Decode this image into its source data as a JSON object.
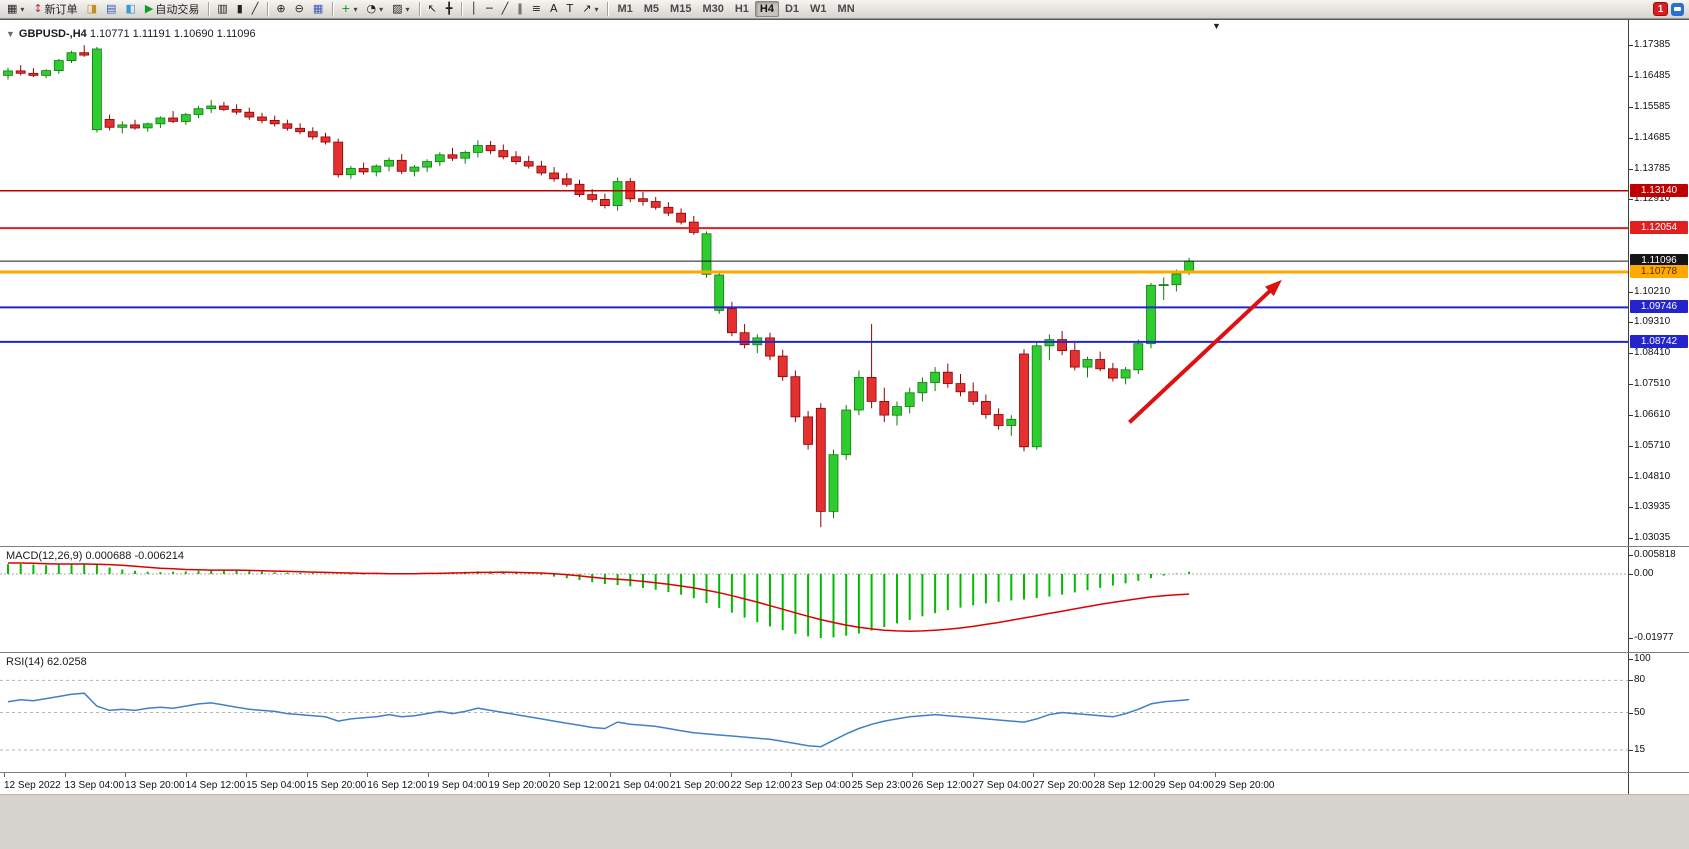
{
  "toolbar": {
    "notification": {
      "count": "1"
    },
    "groups": [
      {
        "items": [
          {
            "name": "new-chart-button",
            "glyph": "▦",
            "dropdown": true
          },
          {
            "name": "new-order-button",
            "glyph": "↕",
            "glyph_color": "#b03030",
            "label": "新订单"
          },
          {
            "name": "market-watch-button",
            "glyph": "◨",
            "glyph_color": "#c09020"
          },
          {
            "name": "data-window-button",
            "glyph": "▤",
            "glyph_color": "#3858b8"
          },
          {
            "name": "navigator-button",
            "glyph": "◧",
            "glyph_color": "#3898d8"
          },
          {
            "name": "autotrading-button",
            "glyph": "▶",
            "glyph_color": "#10a020",
            "label": "自动交易"
          }
        ]
      },
      {
        "items": [
          {
            "name": "bar-chart-button",
            "glyph": "▥"
          },
          {
            "name": "candlestick-chart-button",
            "glyph": "▮"
          },
          {
            "name": "line-chart-button",
            "glyph": "╱"
          }
        ]
      },
      {
        "items": [
          {
            "name": "zoom-in-button",
            "glyph": "⊕"
          },
          {
            "name": "zoom-out-button",
            "glyph": "⊖"
          },
          {
            "name": "tile-windows-button",
            "glyph": "▦",
            "glyph_color": "#3858b8"
          }
        ]
      },
      {
        "items": [
          {
            "name": "indicators-button",
            "glyph": "+",
            "glyph_color": "#0a9a0a",
            "dropdown": true
          },
          {
            "name": "periods-button",
            "glyph": "◔",
            "dropdown": true
          },
          {
            "name": "templates-button",
            "glyph": "▨",
            "dropdown": true
          }
        ]
      },
      {
        "items": [
          {
            "name": "cursor-button",
            "glyph": "↖"
          },
          {
            "name": "crosshair-button",
            "glyph": "╋"
          }
        ]
      },
      {
        "items": [
          {
            "name": "vertical-line-button",
            "glyph": "│"
          },
          {
            "name": "horizontal-line-button",
            "glyph": "─"
          },
          {
            "name": "trendline-button",
            "glyph": "╱"
          },
          {
            "name": "equidistant-channel-button",
            "glyph": "∥"
          },
          {
            "name": "fibonacci-button",
            "glyph": "≡"
          },
          {
            "name": "text-button",
            "glyph": "A"
          },
          {
            "name": "text-label-button",
            "glyph": "T"
          },
          {
            "name": "arrows-button",
            "glyph": "↗",
            "dropdown": true
          }
        ]
      },
      {
        "items": [
          {
            "name": "timeframe-m1-button",
            "label": "M1",
            "tf": true
          },
          {
            "name": "timeframe-m5-button",
            "label": "M5",
            "tf": true
          },
          {
            "name": "timeframe-m15-button",
            "label": "M15",
            "tf": true
          },
          {
            "name": "timeframe-m30-button",
            "label": "M30",
            "tf": true
          },
          {
            "name": "timeframe-h1-button",
            "label": "H1",
            "tf": true
          },
          {
            "name": "timeframe-h4-button",
            "label": "H4",
            "tf": true,
            "active": true
          },
          {
            "name": "timeframe-d1-button",
            "label": "D1",
            "tf": true
          },
          {
            "name": "timeframe-w1-button",
            "label": "W1",
            "tf": true
          },
          {
            "name": "timeframe-mn-button",
            "label": "MN",
            "tf": true
          }
        ]
      }
    ]
  },
  "icons": {
    "collapse_arrow": "▼",
    "shift_marker": "▼"
  },
  "chart": {
    "symbol_header": "GBPUSD-,H4",
    "ohlc_header": "1.10771 1.11191 1.10690 1.11096"
  },
  "chart_data": {
    "type": "candlestick",
    "title": "GBPUSD- H4",
    "colors": {
      "bull": "#2ecc2e",
      "bull_border": "#0f7a0f",
      "bear": "#e33030",
      "bear_border": "#8f0000",
      "current_line": "#1a1a1a",
      "macd_histogram": "#00bb00",
      "macd_signal": "#dd0000",
      "rsi_line": "#4080c8"
    },
    "price_axis": {
      "min": 1.03035,
      "max": 1.17385,
      "labels": [
        "1.17385",
        "1.16485",
        "1.15585",
        "1.14685",
        "1.13785",
        "1.12910",
        "1.10210",
        "1.09310",
        "1.08410",
        "1.07510",
        "1.06610",
        "1.05710",
        "1.04810",
        "1.03935",
        "1.03035"
      ]
    },
    "time_labels": [
      "12 Sep 2022",
      "13 Sep 04:00",
      "13 Sep 20:00",
      "14 Sep 12:00",
      "15 Sep 04:00",
      "15 Sep 20:00",
      "16 Sep 12:00",
      "19 Sep 04:00",
      "19 Sep 20:00",
      "20 Sep 12:00",
      "21 Sep 04:00",
      "21 Sep 20:00",
      "22 Sep 12:00",
      "23 Sep 04:00",
      "25 Sep 23:00",
      "26 Sep 12:00",
      "27 Sep 04:00",
      "27 Sep 20:00",
      "28 Sep 12:00",
      "29 Sep 04:00",
      "29 Sep 20:00"
    ],
    "hlines": [
      {
        "price": 1.1314,
        "color": "#c00000",
        "width": 1.5
      },
      {
        "price": 1.12054,
        "color": "#e02020",
        "width": 2
      },
      {
        "price": 1.10778,
        "color": "#ffa800",
        "width": 3
      },
      {
        "price": 1.09746,
        "color": "#2424cc",
        "width": 2
      },
      {
        "price": 1.08742,
        "color": "#2424cc",
        "width": 2
      }
    ],
    "current_price": {
      "value": 1.11096,
      "label": "1.11096"
    },
    "badges": [
      {
        "label": "1.13140",
        "price": 1.1314,
        "bg": "#c00000",
        "fg": "#ffffff"
      },
      {
        "label": "1.12054",
        "price": 1.12054,
        "bg": "#e02020",
        "fg": "#ffffff"
      },
      {
        "label": "1.11096",
        "price": 1.11096,
        "bg": "#141414",
        "fg": "#ffffff"
      },
      {
        "label": "1.10778",
        "price": 1.10778,
        "bg": "#ffa800",
        "fg": "#503000"
      },
      {
        "label": "1.09746",
        "price": 1.09746,
        "bg": "#2424cc",
        "fg": "#ffffff"
      },
      {
        "label": "1.08742",
        "price": 1.08742,
        "bg": "#2424cc",
        "fg": "#ffffff"
      }
    ],
    "arrow": {
      "from": [
        88.3,
        1.064
      ],
      "to": [
        100.3,
        1.1055
      ],
      "color": "#dd1111"
    },
    "candles": [
      [
        1.165,
        1.1672,
        1.1638,
        1.1663
      ],
      [
        1.1663,
        1.168,
        1.165,
        1.1656
      ],
      [
        1.1656,
        1.1671,
        1.1645,
        1.165
      ],
      [
        1.165,
        1.1668,
        1.1642,
        1.1664
      ],
      [
        1.1664,
        1.1698,
        1.1655,
        1.1693
      ],
      [
        1.1693,
        1.1722,
        1.1686,
        1.1716
      ],
      [
        1.1716,
        1.1738,
        1.1704,
        1.1709
      ],
      [
        1.1492,
        1.1733,
        1.1484,
        1.1727
      ],
      [
        1.1522,
        1.1536,
        1.149,
        1.1499
      ],
      [
        1.1499,
        1.1516,
        1.1481,
        1.1506
      ],
      [
        1.1506,
        1.1521,
        1.1492,
        1.1497
      ],
      [
        1.1497,
        1.1513,
        1.1486,
        1.1509
      ],
      [
        1.1509,
        1.1531,
        1.1497,
        1.1526
      ],
      [
        1.1526,
        1.1546,
        1.1511,
        1.1516
      ],
      [
        1.1516,
        1.1541,
        1.1506,
        1.1536
      ],
      [
        1.1536,
        1.1561,
        1.1526,
        1.1553
      ],
      [
        1.1553,
        1.1578,
        1.1541,
        1.1561
      ],
      [
        1.1561,
        1.1573,
        1.1546,
        1.1551
      ],
      [
        1.1551,
        1.1566,
        1.1536,
        1.1543
      ],
      [
        1.1543,
        1.1556,
        1.1521,
        1.1529
      ],
      [
        1.1529,
        1.1541,
        1.1511,
        1.1519
      ],
      [
        1.1519,
        1.1533,
        1.1501,
        1.1509
      ],
      [
        1.1509,
        1.1521,
        1.1489,
        1.1496
      ],
      [
        1.1496,
        1.1511,
        1.1479,
        1.1486
      ],
      [
        1.1486,
        1.1499,
        1.1463,
        1.1471
      ],
      [
        1.1471,
        1.1483,
        1.1449,
        1.1456
      ],
      [
        1.1456,
        1.1466,
        1.1353,
        1.1361
      ],
      [
        1.1361,
        1.1386,
        1.1349,
        1.1379
      ],
      [
        1.1379,
        1.1396,
        1.1361,
        1.1369
      ],
      [
        1.1369,
        1.1391,
        1.1356,
        1.1386
      ],
      [
        1.1386,
        1.1411,
        1.1371,
        1.1403
      ],
      [
        1.1403,
        1.1421,
        1.1363,
        1.1371
      ],
      [
        1.1371,
        1.1389,
        1.1356,
        1.1383
      ],
      [
        1.1383,
        1.1406,
        1.1369,
        1.1399
      ],
      [
        1.1399,
        1.1426,
        1.1386,
        1.1419
      ],
      [
        1.1419,
        1.1439,
        1.1401,
        1.1409
      ],
      [
        1.1409,
        1.1431,
        1.1393,
        1.1426
      ],
      [
        1.1426,
        1.1461,
        1.1411,
        1.1446
      ],
      [
        1.1446,
        1.1459,
        1.1421,
        1.1431
      ],
      [
        1.1431,
        1.1449,
        1.1406,
        1.1413
      ],
      [
        1.1413,
        1.1429,
        1.1391,
        1.1399
      ],
      [
        1.1399,
        1.1416,
        1.1379,
        1.1386
      ],
      [
        1.1386,
        1.1401,
        1.1359,
        1.1366
      ],
      [
        1.1366,
        1.1383,
        1.1341,
        1.1349
      ],
      [
        1.1349,
        1.1366,
        1.1326,
        1.1333
      ],
      [
        1.1333,
        1.1346,
        1.1296,
        1.1303
      ],
      [
        1.1303,
        1.1319,
        1.1281,
        1.1289
      ],
      [
        1.1289,
        1.1306,
        1.1263,
        1.1271
      ],
      [
        1.1271,
        1.1353,
        1.1256,
        1.1341
      ],
      [
        1.1341,
        1.1351,
        1.1281,
        1.1291
      ],
      [
        1.1291,
        1.1311,
        1.1271,
        1.1283
      ],
      [
        1.1283,
        1.1296,
        1.1259,
        1.1266
      ],
      [
        1.1266,
        1.1281,
        1.1241,
        1.1249
      ],
      [
        1.1249,
        1.1263,
        1.1216,
        1.1223
      ],
      [
        1.1223,
        1.1241,
        1.1186,
        1.1193
      ],
      [
        1.1071,
        1.1196,
        1.1061,
        1.1189
      ],
      [
        1.0966,
        1.1076,
        1.0956,
        1.1069
      ],
      [
        1.0971,
        1.0991,
        1.0891,
        1.0901
      ],
      [
        1.0901,
        1.0926,
        1.0856,
        1.0866
      ],
      [
        1.0866,
        1.0896,
        1.0841,
        1.0886
      ],
      [
        1.0886,
        1.0901,
        1.0821,
        1.0833
      ],
      [
        1.0833,
        1.0851,
        1.0761,
        1.0773
      ],
      [
        1.0773,
        1.0791,
        1.0641,
        1.0656
      ],
      [
        1.0656,
        1.0673,
        1.0561,
        1.0576
      ],
      [
        1.0681,
        1.0696,
        1.0335,
        1.0381
      ],
      [
        1.0381,
        1.0561,
        1.0361,
        1.0546
      ],
      [
        1.0546,
        1.0691,
        1.0531,
        1.0676
      ],
      [
        1.0676,
        1.0791,
        1.0661,
        1.0771
      ],
      [
        1.0771,
        1.0926,
        1.0681,
        1.0701
      ],
      [
        1.0701,
        1.0741,
        1.0641,
        1.0661
      ],
      [
        1.0661,
        1.0701,
        1.0631,
        1.0686
      ],
      [
        1.0686,
        1.0741,
        1.0666,
        1.0726
      ],
      [
        1.0726,
        1.0771,
        1.0701,
        1.0756
      ],
      [
        1.0756,
        1.0801,
        1.0731,
        1.0786
      ],
      [
        1.0786,
        1.0811,
        1.0741,
        1.0753
      ],
      [
        1.0753,
        1.0781,
        1.0716,
        1.0729
      ],
      [
        1.0729,
        1.0756,
        1.0691,
        1.0701
      ],
      [
        1.0701,
        1.0721,
        1.0651,
        1.0663
      ],
      [
        1.0663,
        1.0681,
        1.0619,
        1.0631
      ],
      [
        1.0631,
        1.0661,
        1.0601,
        1.0649
      ],
      [
        1.0839,
        1.0853,
        1.0556,
        1.0569
      ],
      [
        1.0569,
        1.0876,
        1.0561,
        1.0863
      ],
      [
        1.0863,
        1.0896,
        1.0821,
        1.0881
      ],
      [
        1.0881,
        1.0906,
        1.0836,
        1.0849
      ],
      [
        1.0849,
        1.0871,
        1.0791,
        1.0801
      ],
      [
        1.0801,
        1.0831,
        1.0771,
        1.0823
      ],
      [
        1.0823,
        1.0846,
        1.0789,
        1.0796
      ],
      [
        1.0796,
        1.0813,
        1.0759,
        1.0769
      ],
      [
        1.0769,
        1.0801,
        1.0751,
        1.0793
      ],
      [
        1.0793,
        1.0881,
        1.0781,
        1.0869
      ],
      [
        1.0869,
        1.1046,
        1.0856,
        1.1039
      ],
      [
        1.1039,
        1.1062,
        1.0996,
        1.1041
      ],
      [
        1.1041,
        1.1085,
        1.1021,
        1.1072
      ],
      [
        1.10771,
        1.11191,
        1.1069,
        1.11096
      ]
    ],
    "macd": {
      "name": "MACD(12,26,9)",
      "main": "0.000688",
      "signal": "-0.006214",
      "scale": [
        {
          "label": "0.005818",
          "value": 0.005818
        },
        {
          "label": "0.00",
          "value": 0
        },
        {
          "label": "-0.01977",
          "value": -0.01977
        }
      ],
      "histogram": [
        0.003,
        0.0031,
        0.0029,
        0.0027,
        0.0029,
        0.0032,
        0.0033,
        0.0028,
        0.002,
        0.0014,
        0.001,
        0.0007,
        0.0006,
        0.0007,
        0.0008,
        0.001,
        0.0012,
        0.0012,
        0.0011,
        0.0009,
        0.0007,
        0.0005,
        0.0004,
        0.0003,
        0.0003,
        0.0002,
        0.0,
        -0.0002,
        -0.0002,
        -0.0001,
        0.0,
        0.0001,
        0.0002,
        0.0003,
        0.0005,
        0.0006,
        0.0007,
        0.0008,
        0.0008,
        0.0006,
        0.0004,
        0.0001,
        -0.0003,
        -0.0008,
        -0.0013,
        -0.0019,
        -0.0025,
        -0.0031,
        -0.0034,
        -0.0038,
        -0.0043,
        -0.0049,
        -0.0056,
        -0.0064,
        -0.0075,
        -0.009,
        -0.0105,
        -0.012,
        -0.0135,
        -0.0149,
        -0.0162,
        -0.0174,
        -0.0185,
        -0.0193,
        -0.0198,
        -0.0196,
        -0.0191,
        -0.0184,
        -0.0175,
        -0.0164,
        -0.0153,
        -0.0142,
        -0.0131,
        -0.0121,
        -0.0112,
        -0.0104,
        -0.0097,
        -0.0091,
        -0.0086,
        -0.0082,
        -0.0079,
        -0.0075,
        -0.007,
        -0.0064,
        -0.0057,
        -0.005,
        -0.0043,
        -0.0036,
        -0.0029,
        -0.0021,
        -0.0013,
        -0.0005,
        0.0002,
        0.000688
      ],
      "signal_line": [
        0.0034,
        0.0034,
        0.0033,
        0.0032,
        0.0031,
        0.0031,
        0.0031,
        0.003,
        0.0029,
        0.0027,
        0.0024,
        0.0021,
        0.0018,
        0.0016,
        0.0014,
        0.0013,
        0.0012,
        0.0012,
        0.0012,
        0.0011,
        0.001,
        0.0009,
        0.0008,
        0.0007,
        0.0006,
        0.0005,
        0.0004,
        0.0003,
        0.0002,
        0.0002,
        0.0001,
        0.0001,
        0.0001,
        0.0002,
        0.0002,
        0.0003,
        0.0004,
        0.0005,
        0.0005,
        0.0006,
        0.0005,
        0.0004,
        0.0003,
        0.0001,
        -0.0002,
        -0.0006,
        -0.001,
        -0.0014,
        -0.0016,
        -0.0019,
        -0.0023,
        -0.0027,
        -0.0032,
        -0.0037,
        -0.0043,
        -0.005,
        -0.0058,
        -0.0067,
        -0.0077,
        -0.0087,
        -0.0098,
        -0.0109,
        -0.012,
        -0.0131,
        -0.0141,
        -0.015,
        -0.0158,
        -0.0165,
        -0.017,
        -0.0174,
        -0.0176,
        -0.0177,
        -0.0176,
        -0.0174,
        -0.0171,
        -0.0167,
        -0.0162,
        -0.0156,
        -0.015,
        -0.0143,
        -0.0136,
        -0.0129,
        -0.0122,
        -0.0115,
        -0.0108,
        -0.0101,
        -0.0094,
        -0.0088,
        -0.0082,
        -0.0076,
        -0.0071,
        -0.0067,
        -0.0064,
        -0.006214
      ]
    },
    "rsi": {
      "name": "RSI(14)",
      "value": "62.0258",
      "levels": [
        80,
        50,
        15
      ],
      "scale": [
        {
          "label": "100",
          "value": 100
        },
        {
          "label": "80",
          "value": 80
        },
        {
          "label": "50",
          "value": 50
        },
        {
          "label": "15",
          "value": 15
        }
      ],
      "values": [
        60,
        62,
        61,
        63,
        65,
        67,
        68,
        56,
        52,
        53,
        52,
        54,
        55,
        54,
        56,
        58,
        59,
        57,
        55,
        53,
        52,
        51,
        49,
        48,
        47,
        46,
        42,
        44,
        45,
        46,
        48,
        46,
        47,
        49,
        51,
        49,
        51,
        54,
        52,
        50,
        48,
        46,
        44,
        42,
        40,
        38,
        36,
        35,
        41,
        39,
        38,
        37,
        35,
        33,
        31,
        30,
        29,
        28,
        27,
        26,
        25,
        23,
        21,
        19,
        18,
        24,
        30,
        35,
        39,
        42,
        44,
        46,
        47,
        48,
        47,
        46,
        45,
        44,
        43,
        42,
        41,
        44,
        48,
        50,
        49,
        48,
        47,
        46,
        49,
        53,
        58,
        60,
        61,
        62.0258
      ]
    }
  }
}
